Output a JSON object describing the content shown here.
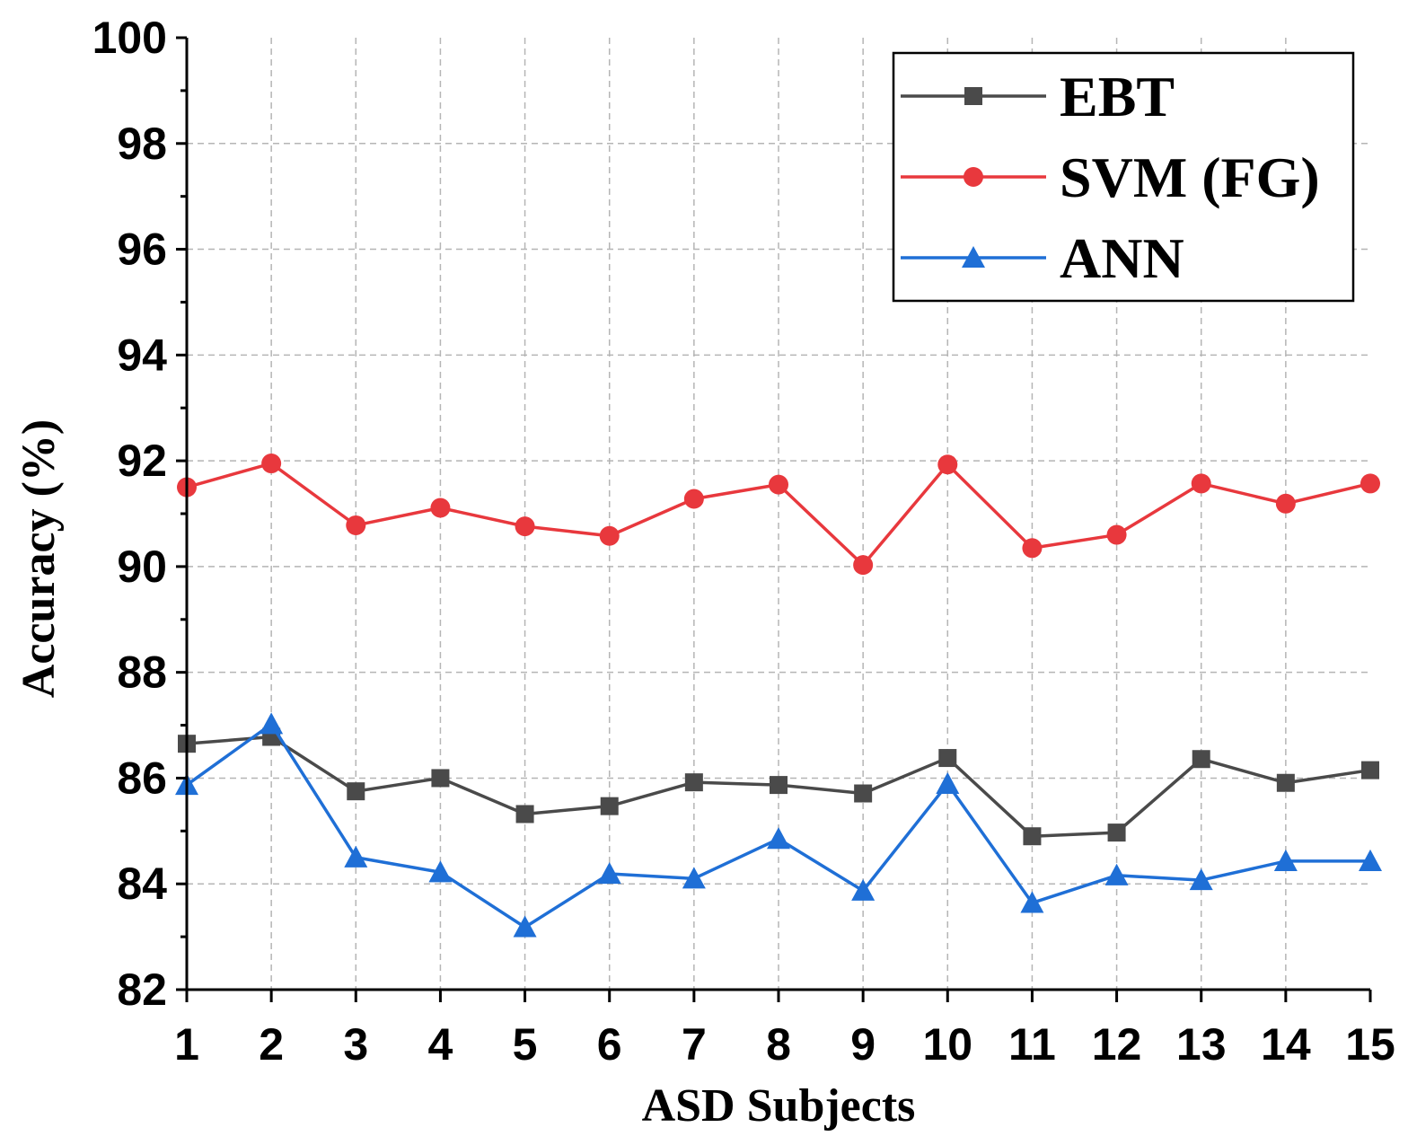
{
  "chart_data": {
    "type": "line",
    "title": "",
    "xlabel": "ASD Subjects",
    "ylabel": "Accuracy (%)",
    "x": [
      1,
      2,
      3,
      4,
      5,
      6,
      7,
      8,
      9,
      10,
      11,
      12,
      13,
      14,
      15
    ],
    "xlim": [
      1,
      15
    ],
    "ylim": [
      82,
      100
    ],
    "yticks": [
      82,
      84,
      86,
      88,
      90,
      92,
      94,
      96,
      98,
      100
    ],
    "grid": true,
    "legend_position": "top-right",
    "series": [
      {
        "name": "EBT",
        "color": "#4a4a4a",
        "marker": "square",
        "values": [
          86.65,
          86.78,
          85.75,
          86.0,
          85.32,
          85.47,
          85.92,
          85.87,
          85.71,
          86.38,
          84.9,
          84.97,
          86.36,
          85.91,
          86.15
        ]
      },
      {
        "name": "SVM (FG)",
        "color": "#e8383d",
        "marker": "circle",
        "values": [
          91.5,
          91.95,
          90.78,
          91.11,
          90.76,
          90.58,
          91.28,
          91.55,
          90.03,
          91.93,
          90.35,
          90.6,
          91.57,
          91.19,
          91.57
        ]
      },
      {
        "name": "ANN",
        "color": "#1f6fd6",
        "marker": "triangle",
        "values": [
          85.87,
          87.02,
          84.5,
          84.22,
          83.18,
          84.19,
          84.1,
          84.85,
          83.87,
          85.89,
          83.64,
          84.16,
          84.07,
          84.43,
          84.43
        ]
      }
    ]
  }
}
